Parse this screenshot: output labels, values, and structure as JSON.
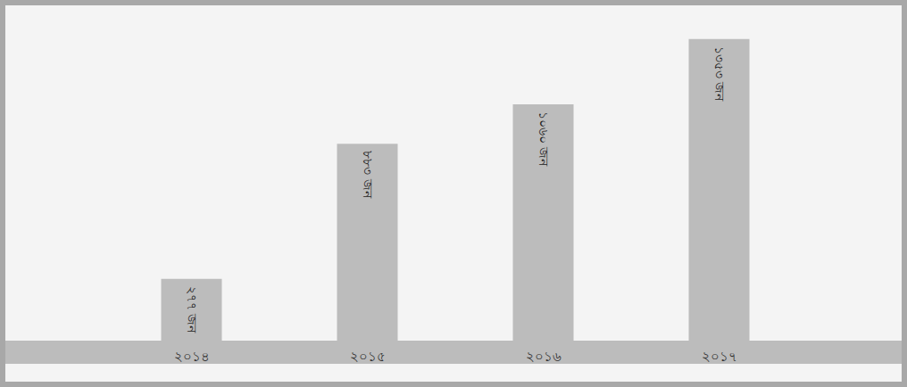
{
  "chart_data": {
    "type": "bar",
    "categories": [
      "২০১৪",
      "২০১৫",
      "২০১৬",
      "২০১৭"
    ],
    "values": [
      277,
      883,
      1060,
      1353
    ],
    "value_labels": [
      "২৭৭ জন",
      "৮৮৩ জন",
      "১০৬০ জন",
      "১৩৫৩ জন"
    ],
    "color": "#bcbcbc",
    "ylim": [
      0,
      1400
    ],
    "grid": false,
    "data_labels": true,
    "tick_labels": "x"
  }
}
